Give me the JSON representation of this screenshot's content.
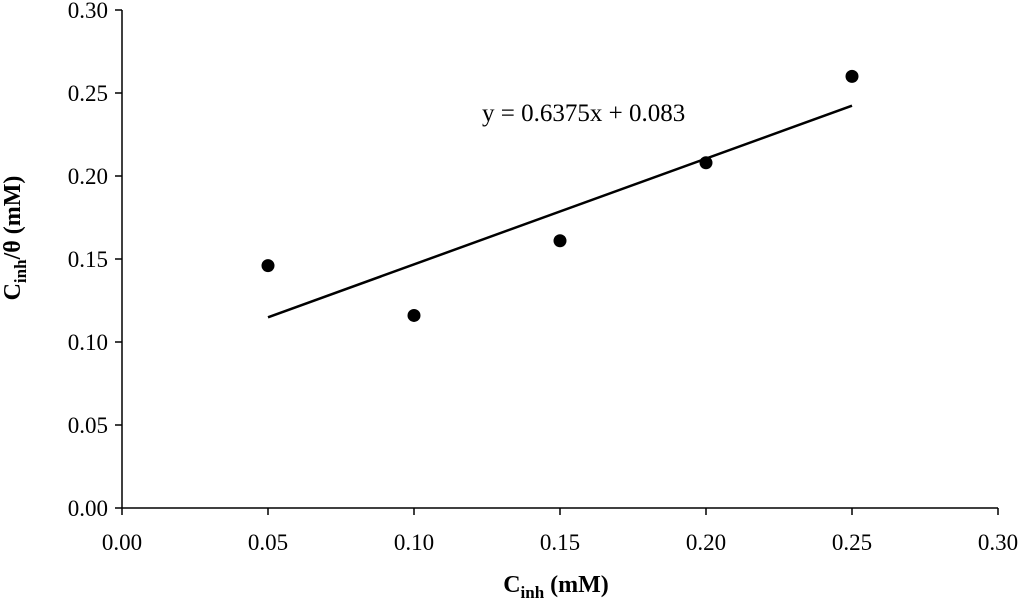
{
  "chart_data": {
    "type": "scatter",
    "title": "",
    "xlabel": {
      "main": "C",
      "sub": "inh",
      "rest": " (mM)"
    },
    "ylabel": {
      "main": "C",
      "sub": "inh",
      "rest": "/θ (mM)"
    },
    "xlim": [
      0,
      0.3
    ],
    "ylim": [
      0,
      0.3
    ],
    "x_ticks": [
      "0.00",
      "0.05",
      "0.10",
      "0.15",
      "0.20",
      "0.25",
      "0.30"
    ],
    "y_ticks": [
      "0.00",
      "0.05",
      "0.10",
      "0.15",
      "0.20",
      "0.25",
      "0.30"
    ],
    "grid": false,
    "legend": "none",
    "series": [
      {
        "points": [
          {
            "x": 0.05,
            "y": 0.146
          },
          {
            "x": 0.1,
            "y": 0.116
          },
          {
            "x": 0.15,
            "y": 0.161
          },
          {
            "x": 0.2,
            "y": 0.208
          },
          {
            "x": 0.25,
            "y": 0.26
          }
        ],
        "marker_color": "#000000"
      }
    ],
    "trendline": {
      "type": "linear",
      "slope": 0.6375,
      "intercept": 0.083,
      "x_range": [
        0.05,
        0.25
      ],
      "equation_label": "y = 0.6375x + 0.083",
      "color": "#000000"
    }
  }
}
